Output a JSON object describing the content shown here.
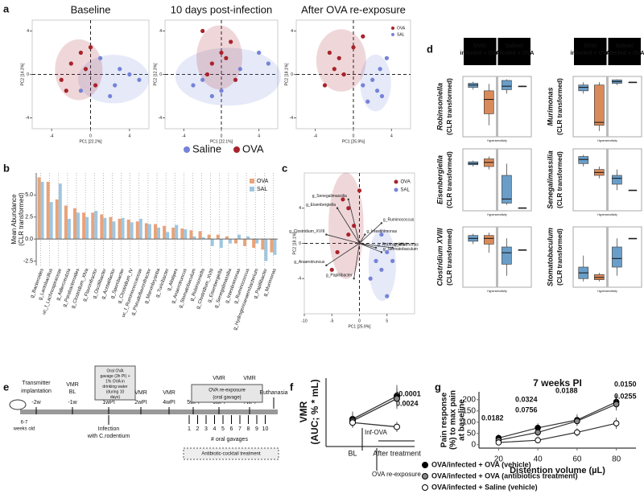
{
  "panel_labels": [
    "a",
    "b",
    "c",
    "d",
    "e",
    "f",
    "g"
  ],
  "chart_data": [
    {
      "type": "scatter",
      "title": "Baseline",
      "x_label": "PC1 [22.2%]",
      "y_label": "PC2 [14.3%]",
      "xlim": [
        -6,
        6
      ],
      "ylim": [
        -5,
        5
      ],
      "xticks": [
        -4,
        0,
        4
      ],
      "yticks": [
        -4,
        0,
        4
      ],
      "ellipses": true,
      "legend": "below",
      "series": [
        {
          "name": "Saline",
          "color": "#7583d8",
          "x": [
            1,
            2.5,
            3,
            4,
            5,
            2,
            -1
          ],
          "values": [
            1.5,
            -1,
            0.5,
            0,
            -0.5,
            -2,
            -1.5
          ]
        },
        {
          "name": "OVA",
          "color": "#a8232b",
          "x": [
            -3,
            -2,
            -1,
            -0.5,
            0.5,
            -2.5,
            0
          ],
          "values": [
            -0.5,
            1,
            2,
            0.5,
            -1,
            -1.5,
            2.5
          ]
        }
      ]
    },
    {
      "type": "scatter",
      "title": "10 days post-infection",
      "x_label": "PC1 [22.1%]",
      "y_label": "PC2 [12.3%]",
      "xlim": [
        -6,
        6
      ],
      "ylim": [
        -5,
        5
      ],
      "xticks": [
        -4,
        0,
        4
      ],
      "yticks": [
        -4,
        0,
        4
      ],
      "ellipses": true,
      "series": [
        {
          "color": "#7583d8",
          "x": [
            -3,
            -2,
            -1,
            0,
            2,
            4,
            5
          ],
          "values": [
            -1,
            -0.5,
            -2,
            -1.5,
            0.5,
            2,
            1
          ]
        },
        {
          "color": "#a8232b",
          "x": [
            -2,
            -1,
            0,
            1,
            -1.5,
            0.5,
            1.5
          ],
          "values": [
            4,
            1,
            2,
            3,
            0,
            1.5,
            -0.5
          ]
        }
      ]
    },
    {
      "type": "scatter",
      "title": "After  OVA re-exposure",
      "x_label": "PC1 [25.9%]",
      "y_label": "PC2 [18.1%]",
      "xlim": [
        -6,
        6
      ],
      "ylim": [
        -5,
        5
      ],
      "xticks": [
        -4,
        0,
        4
      ],
      "yticks": [
        -4,
        0,
        4
      ],
      "ellipses": true,
      "legend": "inside-top-right",
      "series": [
        {
          "name": "OVA",
          "color": "#a8232b",
          "x": [
            -3,
            -2,
            -1.5,
            -2.5,
            0,
            -1,
            1
          ],
          "values": [
            -1,
            0.5,
            1.5,
            2,
            2.5,
            0,
            3.5
          ]
        },
        {
          "name": "SAL",
          "color": "#7583d8",
          "x": [
            1,
            2,
            2.5,
            3,
            1.5,
            2.8,
            3.5
          ],
          "values": [
            -1,
            -0.5,
            -1.5,
            -2,
            -2.5,
            0.5,
            1.5
          ]
        }
      ]
    },
    {
      "type": "bar",
      "y_label": [
        "Mean Abundance",
        "(CLR transformed)"
      ],
      "ylim": [
        -3,
        7.5
      ],
      "yticks": [
        -2.5,
        {
          "value": 0,
          "label": "0.0"
        },
        2.5,
        {
          "value": 5,
          "label": "5.0"
        }
      ],
      "legend": "inside-top-right",
      "categories": [
        "g_Bacteroides",
        "g_Lactobacillus",
        "uc_f_Lachnospiraceae",
        "g_Adlercreutzia",
        "g_Parabacteroides",
        "g_Clostridium_XlVa",
        "g_Flavonifractor",
        "g_Oscillibacter",
        "g_Acetatifactor",
        "g_Sporobacter",
        "g_Clostridium_IV",
        "uc_f_Ruminococcaceae",
        "g_Pseudoflavonifractor",
        "g_Marvinbryantia",
        "g_Turicibacter",
        "g_Alistipes",
        "g_Anaerotruncus",
        "g_Stomatobaculum",
        "g_Robinsoniella",
        "g_Clostridium_XVIII",
        "g_Eisenbergiella",
        "g_Senegalimassilia",
        "g_Intestinimonas",
        "g_Ruminococcus",
        "g_Hydrogenoanaerobacterium",
        "g_Papillibacter",
        "g_Murimonas"
      ],
      "series": [
        {
          "name": "OVA",
          "color": "#e8a37a",
          "values": [
            7,
            6.5,
            4.5,
            3.8,
            3.5,
            3,
            3,
            2.8,
            2.5,
            2.3,
            2.2,
            2,
            1.8,
            1.7,
            1.5,
            1.3,
            1.2,
            1,
            0.9,
            0.5,
            0.5,
            0.3,
            -0.5,
            -0.8,
            -1,
            -1.2,
            -1.5
          ]
        },
        {
          "name": "SAL",
          "color": "#9fc6e0",
          "values": [
            6.5,
            4.2,
            6.3,
            2.3,
            3,
            2.5,
            3.2,
            2.4,
            2,
            2.4,
            1.9,
            2.3,
            1.7,
            1.3,
            0.8,
            1.6,
            1.1,
            0.3,
            0.2,
            -0.8,
            -1,
            -0.5,
            0.5,
            0.3,
            -0.5,
            -2.5,
            -1.8
          ]
        }
      ]
    },
    {
      "type": "scatter",
      "x_label": "PC1 [25.9%]",
      "y_label": "PC2 [18.1%]",
      "xlim": [
        -10,
        10
      ],
      "ylim": [
        -8,
        8
      ],
      "xticks": [
        -10,
        -5,
        0,
        5
      ],
      "yticks": [
        -4,
        0,
        4
      ],
      "ellipses": true,
      "legend": "inside-top-right",
      "series": [
        {
          "name": "OVA",
          "color": "#a8232b",
          "x": [
            -3,
            -2,
            -4,
            -5,
            -1,
            0,
            -2
          ],
          "values": [
            5,
            4,
            -1,
            -3,
            2,
            6,
            1
          ]
        },
        {
          "name": "SAL",
          "color": "#7583d8",
          "x": [
            3,
            4,
            5,
            2,
            6,
            5,
            4
          ],
          "values": [
            -2,
            -3,
            -1,
            -4,
            -2,
            -6,
            1
          ]
        }
      ],
      "loadings": {
        "names": [
          "g_Senegalimassilia",
          "g_Eisenbergiella",
          "g_Ruminococcus",
          "g_Clostridium_XVIII",
          "g_Intestinimonas",
          "g_Stomatobaculum",
          "g_Robinsoniella",
          "g_Murimonas",
          "g_Anaerotruncus",
          "g_Papillibacter"
        ],
        "x": [
          -2,
          -4,
          4,
          -6,
          1,
          4,
          3,
          6,
          -6,
          -1
        ],
        "values": [
          5,
          4,
          2.3,
          1,
          1,
          -1,
          -0.5,
          -0.5,
          -2.5,
          -4
        ]
      }
    },
    {
      "type": "box",
      "columns": [
        "OVA/ infected + OVA",
        "Saline/ infected + OVA"
      ],
      "y_label_suffix": "(CLR transformed)",
      "x_label": "Hypersensitivity",
      "ylim": [
        0,
        10.5
      ],
      "panels": [
        {
          "genus": "Robinsoniella",
          "boxes": [
            {
              "color": "#6a9ec9",
              "stats": [
                8.2,
                8.6,
                9,
                9.3,
                9.6
              ]
            },
            {
              "color": "#d98a5a",
              "stats": [
                2,
                4,
                6.5,
                8,
                9.2
              ]
            },
            {
              "color": "#6a9ec9",
              "stats": [
                7.5,
                8.2,
                8.8,
                9.8,
                10
              ]
            },
            {
              "color": "#444444",
              "stats": [
                8.7,
                8.8,
                8.8,
                8.8,
                8.9
              ]
            }
          ]
        },
        {
          "genus": "Murimonas",
          "boxes": [
            {
              "color": "#6a9ec9",
              "stats": [
                7.5,
                8,
                8.6,
                9,
                9.5
              ]
            },
            {
              "color": "#d98a5a",
              "stats": [
                1,
                2,
                2.5,
                9,
                9.5
              ]
            },
            {
              "color": "#6a9ec9",
              "stats": [
                9,
                9.3,
                9.6,
                9.9,
                10
              ]
            },
            {
              "color": "#444444",
              "stats": [
                9.5,
                9.5,
                9.5,
                9.5,
                9.5
              ]
            }
          ]
        },
        {
          "genus": "Eisenbergiella",
          "boxes": [
            {
              "color": "#6a9ec9",
              "stats": [
                7.5,
                7.8,
                8,
                8.3,
                8.5
              ]
            },
            {
              "color": "#d98a5a",
              "stats": [
                7,
                7.5,
                8.2,
                8.8,
                9.2
              ]
            },
            {
              "color": "#6a9ec9",
              "stats": [
                1,
                1.3,
                2,
                6,
                8
              ]
            },
            {
              "color": "#444444",
              "stats": [
                0.5,
                0.5,
                0.5,
                0.5,
                0.5
              ]
            }
          ]
        },
        {
          "genus": "Senegalimassilia",
          "boxes": [
            {
              "color": "#6a9ec9",
              "stats": [
                7.5,
                8,
                8.7,
                9.2,
                9.5
              ]
            },
            {
              "color": "#d98a5a",
              "stats": [
                5.5,
                6,
                6.5,
                7,
                7.5
              ]
            },
            {
              "color": "#6a9ec9",
              "stats": [
                3.5,
                4.5,
                5.5,
                6,
                7
              ]
            },
            {
              "color": "#444444",
              "stats": [
                3.5,
                3.5,
                3.5,
                3.5,
                3.5
              ]
            }
          ]
        },
        {
          "genus": "Clostridium XVIII",
          "boxes": [
            {
              "color": "#6a9ec9",
              "stats": [
                7.5,
                8,
                8.5,
                9,
                9.3
              ]
            },
            {
              "color": "#d98a5a",
              "stats": [
                6,
                7.5,
                8.5,
                9,
                9.5
              ]
            },
            {
              "color": "#6a9ec9",
              "stats": [
                2,
                4,
                6,
                7,
                8.5
              ]
            },
            {
              "color": "#444444",
              "stats": [
                6.5,
                6.5,
                6.5,
                6.5,
                6.5
              ]
            }
          ]
        },
        {
          "genus": "Stomatobaculum",
          "boxes": [
            {
              "color": "#6a9ec9",
              "stats": [
                1,
                1.5,
                2.5,
                3.5,
                5.5
              ]
            },
            {
              "color": "#d98a5a",
              "stats": [
                1,
                1.3,
                1.7,
                2.2,
                2.5
              ]
            },
            {
              "color": "#6a9ec9",
              "stats": [
                2,
                3.5,
                5,
                7,
                8.5
              ]
            },
            {
              "color": "#444444",
              "stats": [
                8.5,
                8.5,
                8.5,
                8.5,
                8.5
              ]
            }
          ]
        }
      ]
    },
    {
      "type": "line",
      "y_label": [
        "VMR",
        "(AUC; % * mL)"
      ],
      "categories": [
        "BL",
        "After treatment"
      ],
      "ylim": [
        0,
        8
      ],
      "annotations": [
        "<0.0001",
        "0.0024",
        "Inf-OVA",
        "OVA re-exposure"
      ],
      "series": [
        {
          "name": "OVA/infected + OVA (vehicle)",
          "color": "#000000",
          "values": [
            3.2,
            5.9
          ],
          "errors": [
            0.9,
            1.3
          ]
        },
        {
          "name": "OVA/infected + OVA (antibiotics treatment)",
          "color": "#888888",
          "values": [
            3,
            5.6
          ],
          "errors": [
            0.8,
            1.2
          ]
        },
        {
          "name": "OVA/infected + Saline (vehicle)",
          "color": "#ffffff",
          "values": [
            2.8,
            2.3
          ],
          "errors": [
            0.6,
            0.6
          ]
        }
      ]
    },
    {
      "type": "line",
      "title": "7 weeks PI",
      "x_label": "Distention volume (µL)",
      "y_label": [
        "Pain response",
        "(%) to max pain",
        "at baseline"
      ],
      "x": [
        20,
        40,
        60,
        80
      ],
      "xlim": [
        10,
        90
      ],
      "ylim": [
        -15,
        235
      ],
      "xticks": [
        20,
        40,
        60,
        80
      ],
      "yticks": [
        0,
        50,
        100,
        150,
        200
      ],
      "annotations": [
        "0.0182",
        "0.0324",
        "0.0756",
        "0.0188",
        "0.0150",
        "0.0255"
      ],
      "series": [
        {
          "color": "#000000",
          "values": [
            30,
            75,
            110,
            190
          ],
          "errors": [
            15,
            20,
            25,
            30
          ]
        },
        {
          "color": "#888888",
          "values": [
            20,
            55,
            105,
            180
          ],
          "errors": [
            12,
            18,
            22,
            28
          ]
        },
        {
          "color": "#ffffff",
          "values": [
            10,
            20,
            55,
            95
          ],
          "errors": [
            8,
            12,
            18,
            25
          ]
        }
      ]
    }
  ],
  "timeline": {
    "implantation": [
      "Transmitter",
      "implantation"
    ],
    "age": [
      "6-7",
      "weeks old"
    ],
    "vmr": "VMR",
    "bl": "BL",
    "infection": [
      "Infection",
      "with C.rodentium"
    ],
    "ova_box": [
      "Oral OVA",
      "gavage (3h PI) +",
      "1% OVA in",
      "drinking water",
      "(during 10",
      "days)"
    ],
    "reexposure": [
      "OVA re-exposure",
      "(oral gavage)"
    ],
    "euthanasia": "Euthanasia",
    "weeks": [
      "-2w",
      "-1w",
      "1wPI",
      "2wPI",
      "4wPI",
      "5wPI",
      "6wPI",
      "7wPI"
    ],
    "gavages": [
      "1",
      "2",
      "3",
      "4",
      "5",
      "6",
      "7",
      "8",
      "9",
      "10"
    ],
    "gavage_caption": "# oral gavages",
    "antibiotics": "Antibiotic-cocktail treatment"
  }
}
